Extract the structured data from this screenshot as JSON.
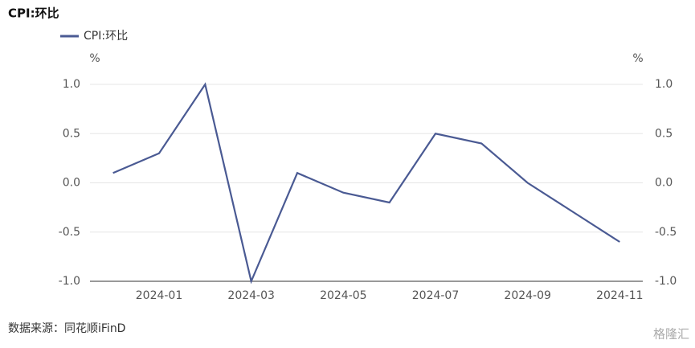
{
  "chart_data": {
    "type": "line",
    "title": "CPI:环比",
    "categories": [
      null,
      "2024-01",
      null,
      "2024-03",
      null,
      "2024-05",
      null,
      "2024-07",
      null,
      "2024-09",
      null,
      "2024-11"
    ],
    "series": [
      {
        "name": "CPI:环比",
        "color": "#4a5a93",
        "values": [
          0.1,
          0.3,
          1.0,
          -1.0,
          0.1,
          -0.1,
          -0.2,
          0.5,
          0.4,
          0.0,
          -0.3,
          -0.6
        ]
      }
    ],
    "ylabel": "%",
    "y2label": "%",
    "ylim": [
      -1.0,
      1.0
    ],
    "yticks": [
      {
        "value": 1.0,
        "label": "1.0"
      },
      {
        "value": 0.5,
        "label": "0.5"
      },
      {
        "value": 0.0,
        "label": "0.0"
      },
      {
        "value": -0.5,
        "label": "-0.5"
      },
      {
        "value": -1.0,
        "label": "-1.0"
      }
    ],
    "y2lim": [
      -1.0,
      1.0
    ],
    "y2ticks": [
      {
        "value": 1.0,
        "label": "1.0"
      },
      {
        "value": 0.5,
        "label": "0.5"
      },
      {
        "value": 0.0,
        "label": "0.0"
      },
      {
        "value": -0.5,
        "label": "-0.5"
      },
      {
        "value": -1.0,
        "label": "-1.0"
      }
    ],
    "grid": true,
    "legend": "top-left",
    "source": "数据来源：同花顺iFinD",
    "watermark": "格隆汇"
  }
}
